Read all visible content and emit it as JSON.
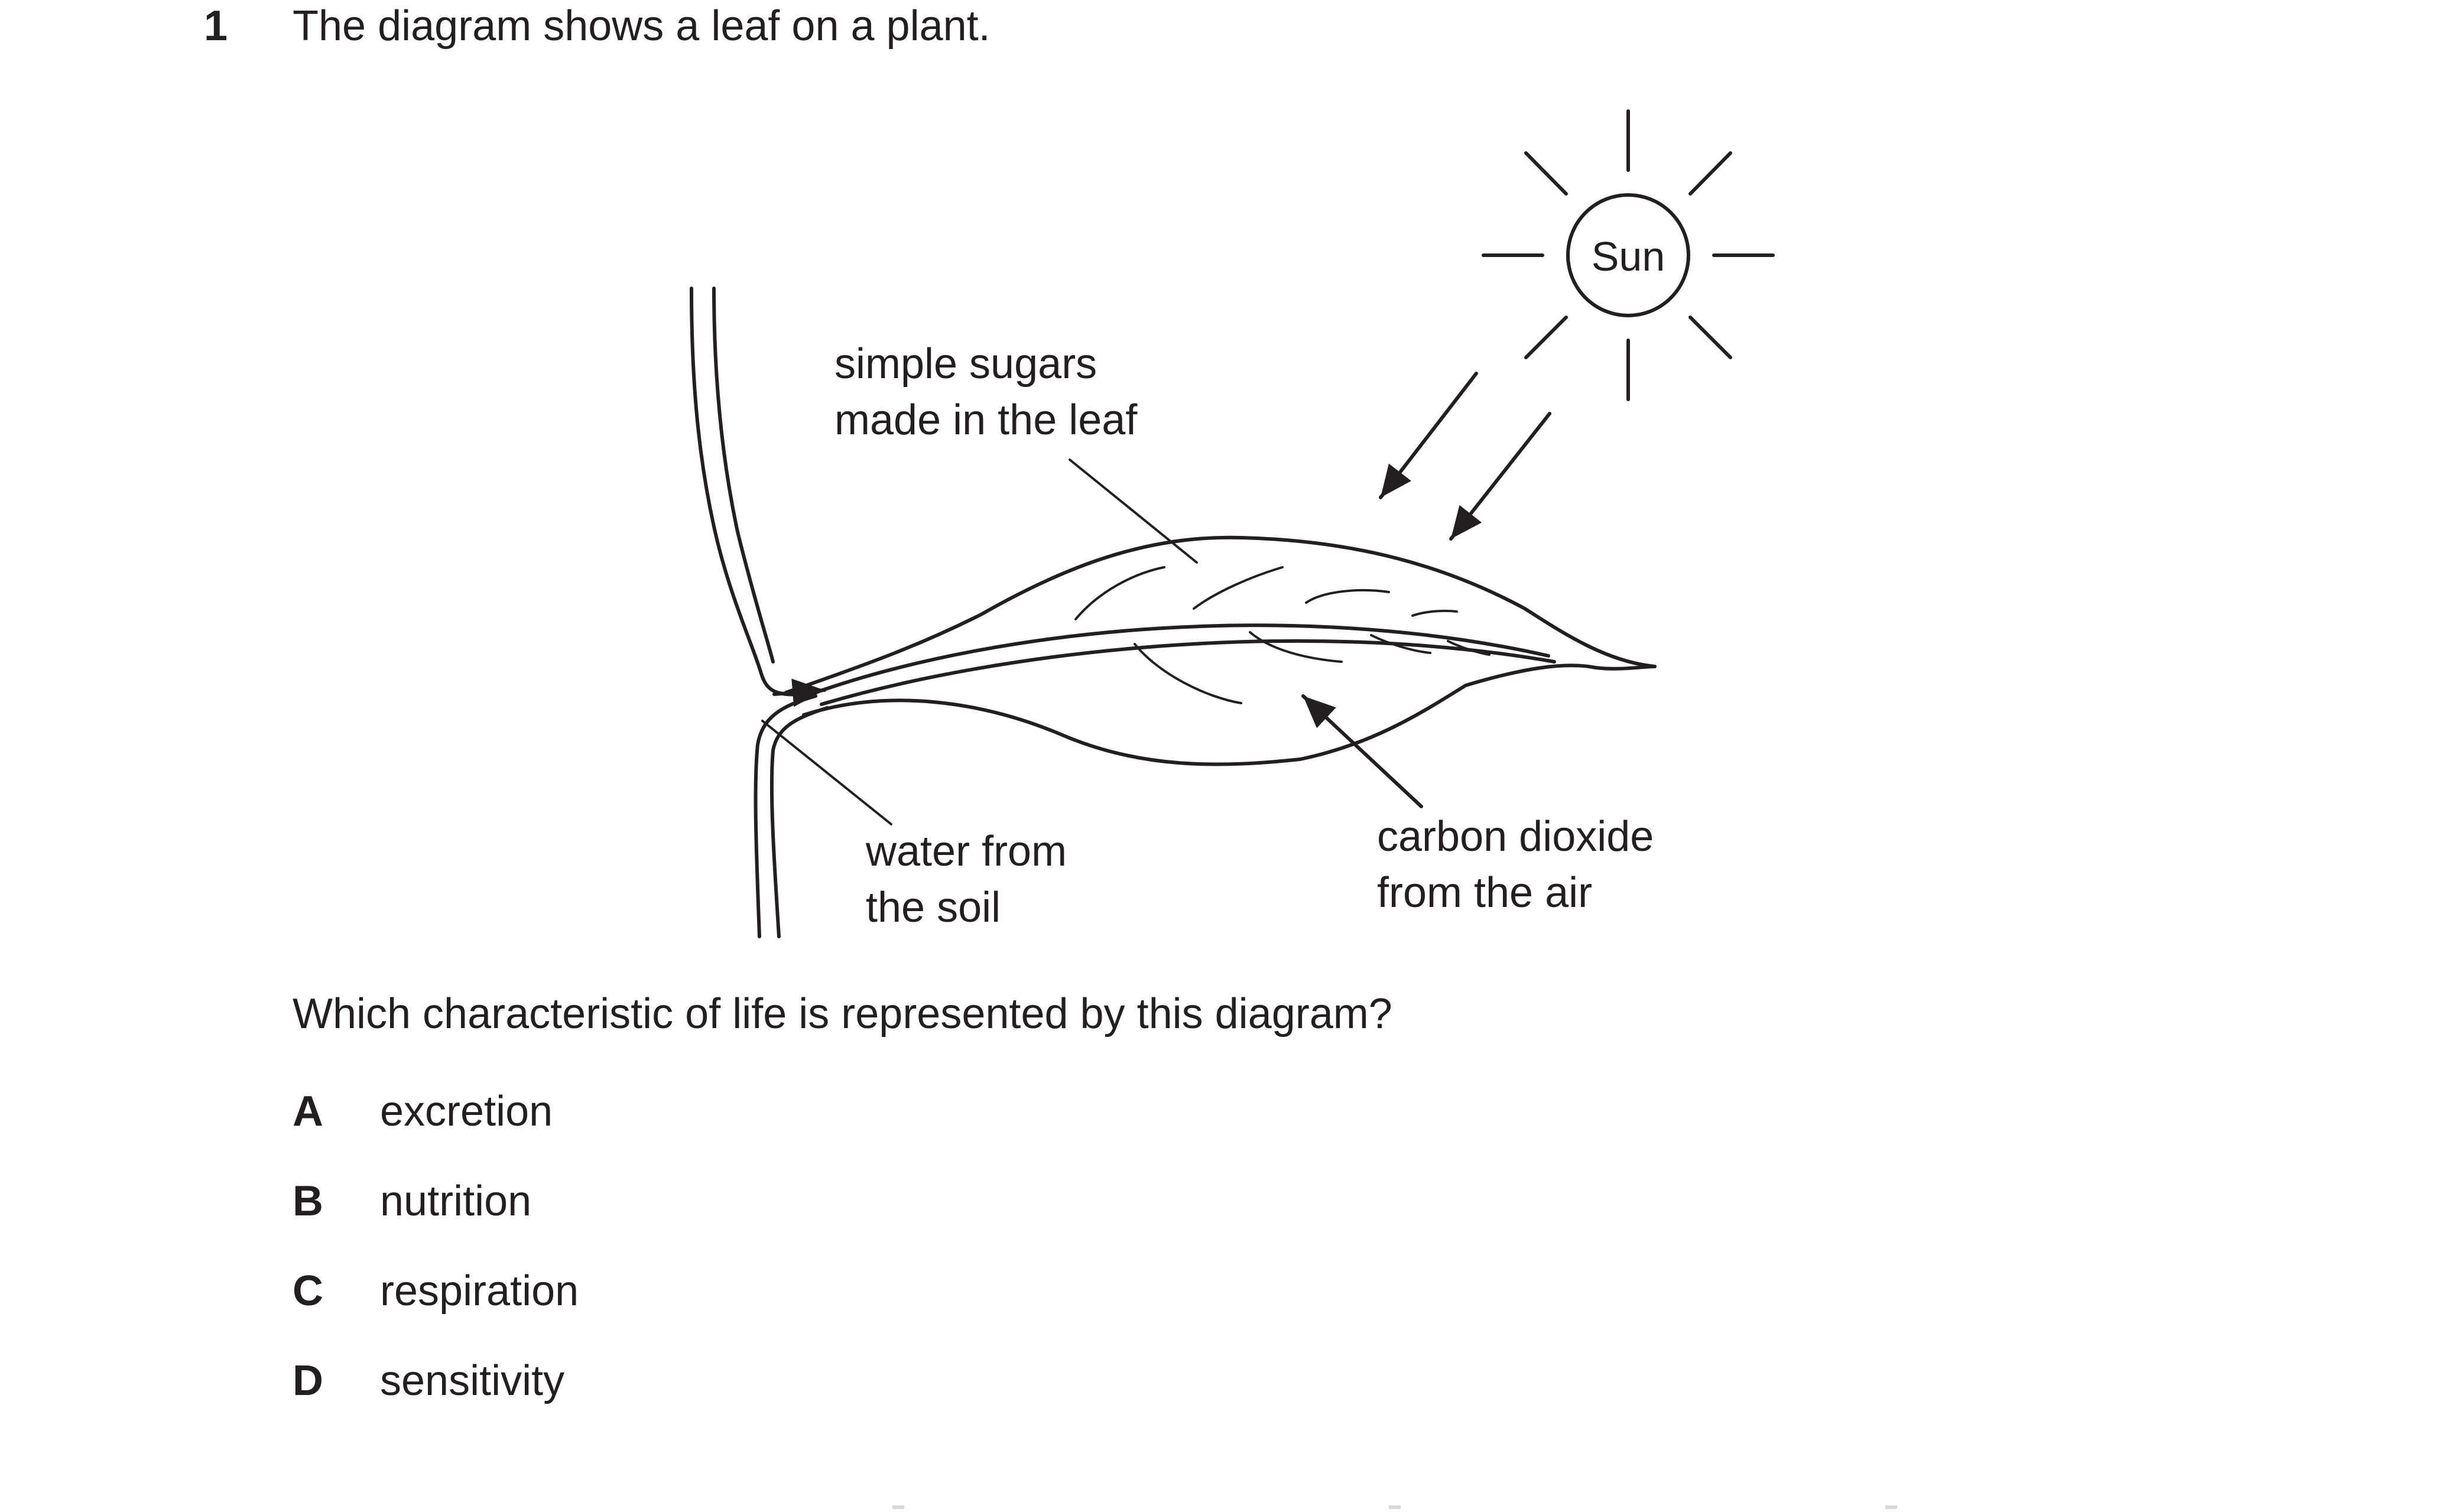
{
  "question": {
    "number": "1",
    "stem": "The diagram shows a leaf on a plant.",
    "prompt": "Which characteristic of life is represented by this diagram?",
    "options": [
      {
        "letter": "A",
        "text": "excretion"
      },
      {
        "letter": "B",
        "text": "nutrition"
      },
      {
        "letter": "C",
        "text": "respiration"
      },
      {
        "letter": "D",
        "text": "sensitivity"
      }
    ]
  },
  "diagram": {
    "sun_label": "Sun",
    "labels": {
      "sugars_line1": "simple sugars",
      "sugars_line2": "made in the leaf",
      "water_line1": "water from",
      "water_line2": "the soil",
      "co2_line1": "carbon dioxide",
      "co2_line2": "from the air"
    }
  }
}
